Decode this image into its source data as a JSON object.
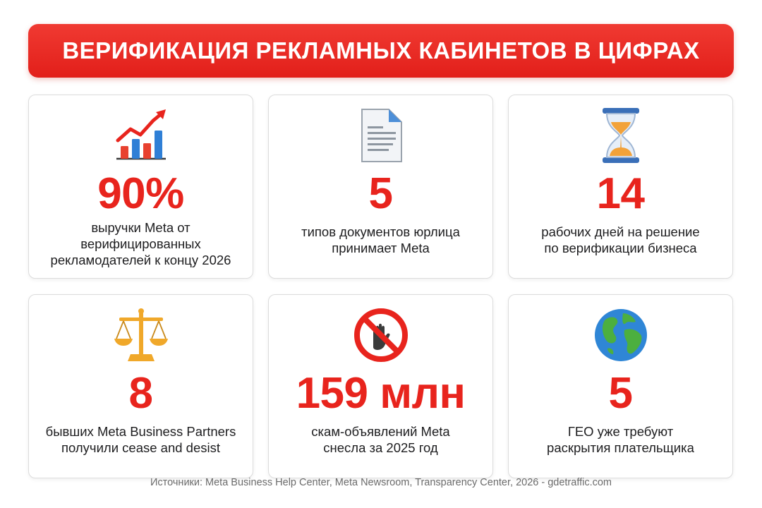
{
  "header": {
    "title": "ВЕРИФИКАЦИЯ РЕКЛАМНЫХ КАБИНЕТОВ В ЦИФРАХ",
    "background": "#e8241d"
  },
  "accent_color": "#e8241d",
  "cards": [
    {
      "icon": "growth-chart-icon",
      "value": "90%",
      "line1": "выручки Meta от",
      "line2": "верифицированных",
      "line3": "рекламодателей к концу 2026"
    },
    {
      "icon": "document-icon",
      "value": "5",
      "line1": "типов документов юрлица",
      "line2": "принимает Meta"
    },
    {
      "icon": "hourglass-icon",
      "value": "14",
      "line1": "рабочих дней на решение",
      "line2": "по верификации бизнеса"
    },
    {
      "icon": "scales-icon",
      "value": "8",
      "line1": "бывших Meta Business Partners",
      "line2": "получили cease and desist"
    },
    {
      "icon": "no-entry-hand-icon",
      "value": "159 млн",
      "line1": "скам-объявлений Meta",
      "line2": "снесла за 2025 год"
    },
    {
      "icon": "globe-icon",
      "value": "5",
      "line1": "ГЕО уже требуют",
      "line2": "раскрытия плательщика"
    }
  ],
  "footer": {
    "sources": "Источники: Meta Business Help Center, Meta Newsroom, Transparency Center, 2026 - gdetraffic.com"
  }
}
